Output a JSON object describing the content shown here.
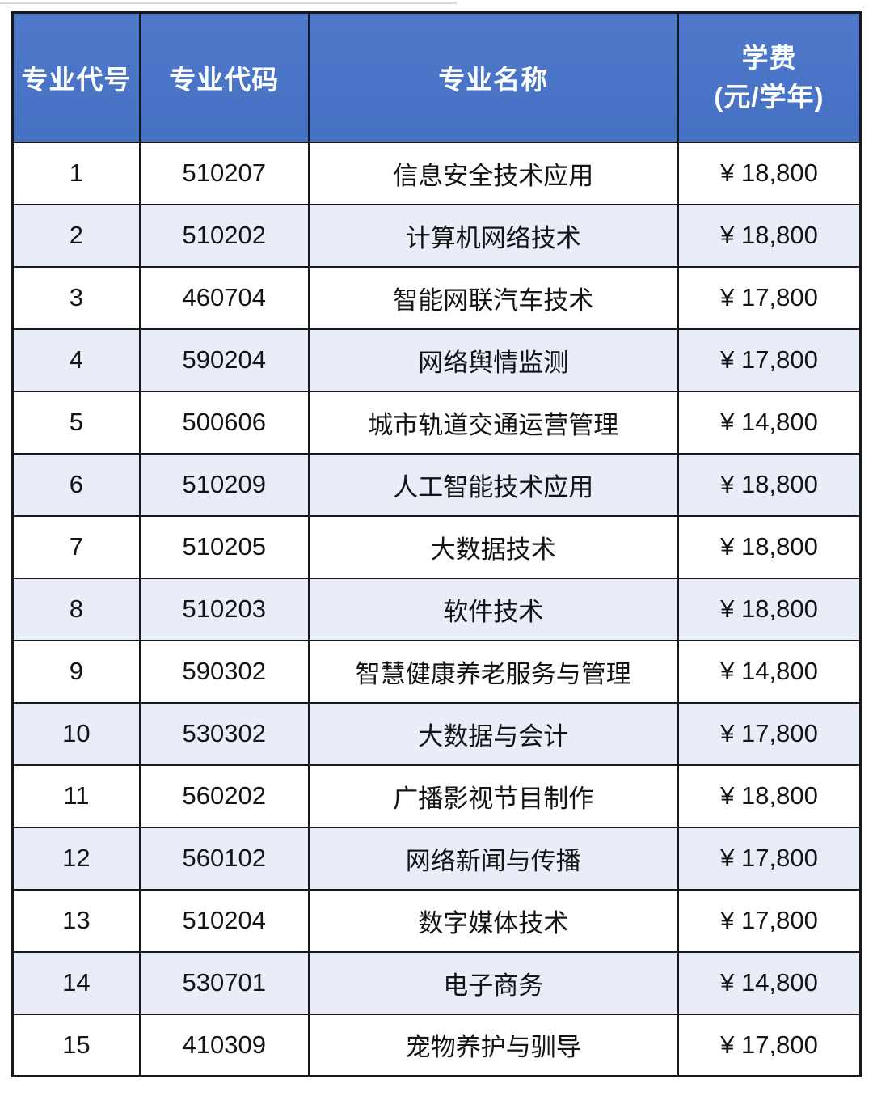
{
  "colors": {
    "header_bg": "#4a75c7",
    "header_text": "#ffffff",
    "row_bg": "#ffffff",
    "row_alt_bg": "#e9edf8",
    "border": "#16181d",
    "text": "#141414"
  },
  "table": {
    "columns": [
      {
        "label": "专业代号"
      },
      {
        "label": "专业代码"
      },
      {
        "label": "专业名称"
      },
      {
        "label": "学费",
        "sublabel": "(元/学年)"
      }
    ],
    "rows": [
      {
        "no": "1",
        "code": "510207",
        "name": "信息安全技术应用",
        "fee": "¥ 18,800"
      },
      {
        "no": "2",
        "code": "510202",
        "name": "计算机网络技术",
        "fee": "¥ 18,800"
      },
      {
        "no": "3",
        "code": "460704",
        "name": "智能网联汽车技术",
        "fee": "¥ 17,800"
      },
      {
        "no": "4",
        "code": "590204",
        "name": "网络舆情监测",
        "fee": "¥ 17,800"
      },
      {
        "no": "5",
        "code": "500606",
        "name": "城市轨道交通运营管理",
        "fee": "¥ 14,800"
      },
      {
        "no": "6",
        "code": "510209",
        "name": "人工智能技术应用",
        "fee": "¥ 18,800"
      },
      {
        "no": "7",
        "code": "510205",
        "name": "大数据技术",
        "fee": "¥ 18,800"
      },
      {
        "no": "8",
        "code": "510203",
        "name": "软件技术",
        "fee": "¥ 18,800"
      },
      {
        "no": "9",
        "code": "590302",
        "name": "智慧健康养老服务与管理",
        "fee": "¥ 14,800"
      },
      {
        "no": "10",
        "code": "530302",
        "name": "大数据与会计",
        "fee": "¥ 17,800"
      },
      {
        "no": "11",
        "code": "560202",
        "name": "广播影视节目制作",
        "fee": "¥ 18,800"
      },
      {
        "no": "12",
        "code": "560102",
        "name": "网络新闻与传播",
        "fee": "¥ 17,800"
      },
      {
        "no": "13",
        "code": "510204",
        "name": "数字媒体技术",
        "fee": "¥ 17,800"
      },
      {
        "no": "14",
        "code": "530701",
        "name": "电子商务",
        "fee": "¥ 14,800"
      },
      {
        "no": "15",
        "code": "410309",
        "name": "宠物养护与驯导",
        "fee": "¥ 17,800"
      }
    ]
  }
}
